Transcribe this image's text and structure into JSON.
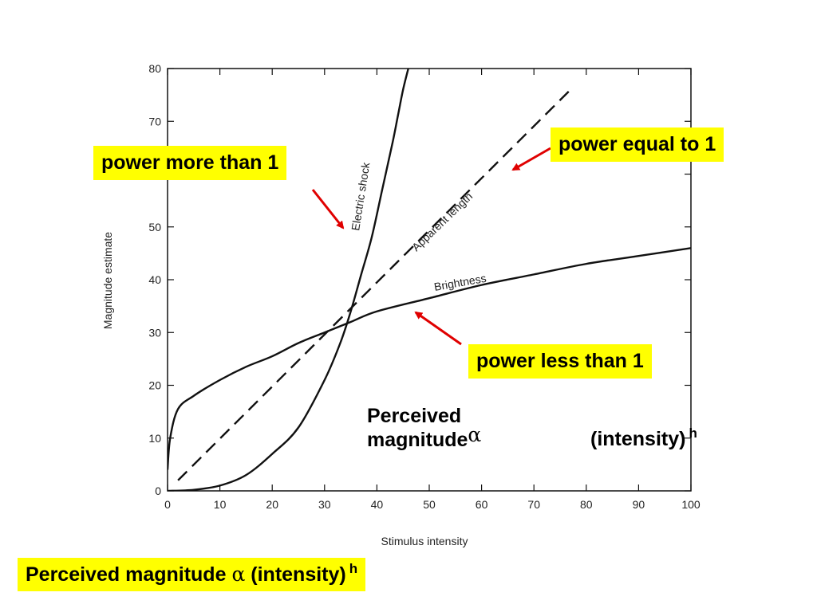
{
  "chart_data": {
    "type": "line",
    "xlabel": "Stimulus intensity",
    "ylabel": "Magnitude estimate",
    "xlim": [
      0,
      100
    ],
    "ylim": [
      0,
      80
    ],
    "x_ticks": [
      "0",
      "10",
      "20",
      "30",
      "40",
      "50",
      "60",
      "70",
      "80",
      "90",
      "100"
    ],
    "y_ticks": [
      "0",
      "10",
      "20",
      "30",
      "40",
      "50",
      "60",
      "70",
      "80"
    ],
    "grid": false,
    "series": [
      {
        "name": "Electric shock",
        "style": "solid",
        "x": [
          0,
          5,
          10,
          15,
          20,
          25,
          30,
          33,
          35,
          37,
          39,
          41,
          43,
          44,
          45,
          46,
          46.5
        ],
        "y": [
          0,
          0.2,
          1,
          3,
          7,
          12,
          21,
          28,
          34,
          41,
          48,
          57,
          66,
          71,
          76,
          80,
          82
        ]
      },
      {
        "name": "Apparent length",
        "style": "dashed",
        "x": [
          2,
          77
        ],
        "y": [
          2,
          76
        ]
      },
      {
        "name": "Brightness",
        "style": "solid",
        "x": [
          0,
          0.5,
          2,
          5,
          10,
          15,
          20,
          25,
          30,
          35,
          40,
          50,
          60,
          70,
          80,
          90,
          100
        ],
        "y": [
          4,
          10,
          15.5,
          18,
          21,
          23.5,
          25.5,
          28,
          30,
          32,
          34,
          36.5,
          39,
          41,
          43,
          44.5,
          46
        ]
      }
    ]
  },
  "callouts": {
    "power_more": "power more than 1",
    "power_equal": "power equal to 1",
    "power_less": "power less than 1"
  },
  "formula": {
    "line1": "Perceived",
    "line2": "magnitude",
    "alpha": "α",
    "intensity": "(intensity)",
    "exponent": "h"
  },
  "footer": {
    "text": "Perceived magnitude",
    "alpha": "α",
    "intensity": "(intensity)",
    "exponent": "h"
  },
  "colors": {
    "highlight": "#ffff00",
    "arrow": "#e00000",
    "line": "#111111"
  }
}
